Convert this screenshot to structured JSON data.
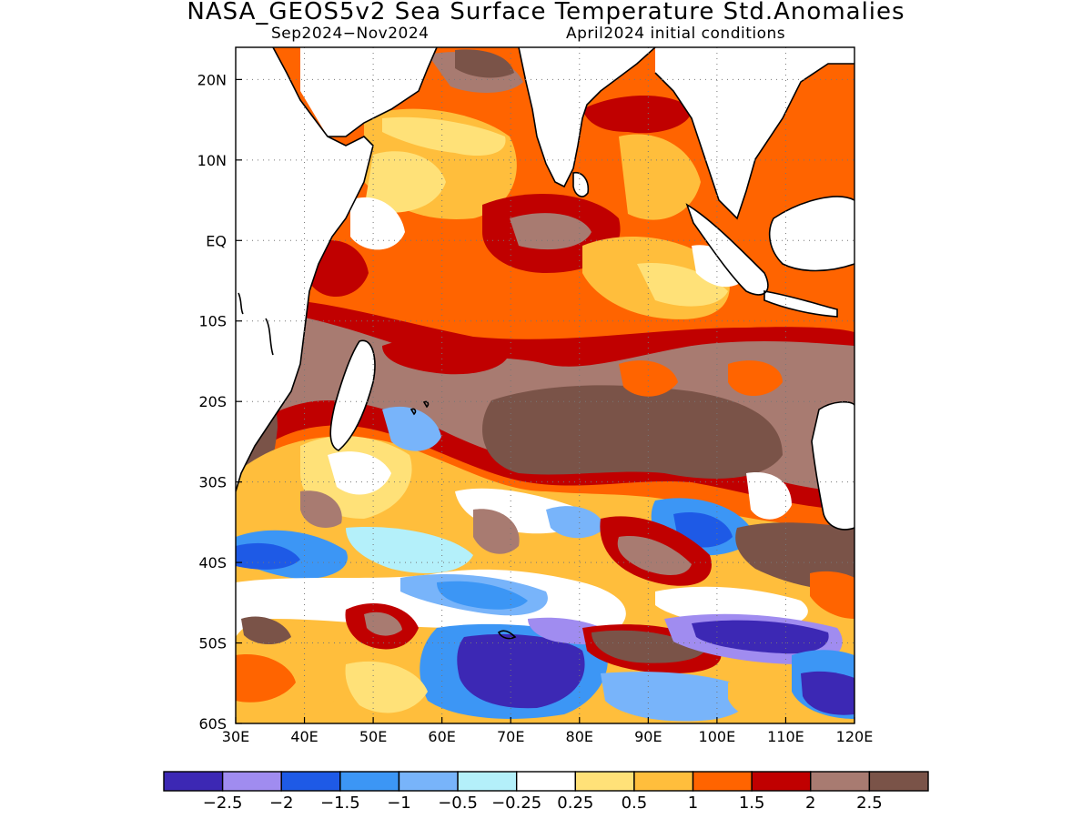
{
  "title": "NASA_GEOS5v2 Sea Surface Temperature Std.Anomalies",
  "subtitle_left": "Sep2024−Nov2024",
  "subtitle_right": "April2024 initial conditions",
  "map": {
    "lon_range": [
      30,
      120
    ],
    "lat_range": [
      -60,
      24
    ],
    "lon_ticks": [
      "30E",
      "40E",
      "50E",
      "60E",
      "70E",
      "80E",
      "90E",
      "100E",
      "110E",
      "120E"
    ],
    "lat_ticks": [
      "20N",
      "10N",
      "EQ",
      "10S",
      "20S",
      "30S",
      "40S",
      "50S",
      "60S"
    ],
    "grid": "dotted"
  },
  "colorbar": {
    "colors": [
      "#3c28b4",
      "#a08cf0",
      "#1e5ae6",
      "#3c96f5",
      "#78b4fa",
      "#b4f0fa",
      "#ffffff",
      "#ffe178",
      "#ffbe3c",
      "#ff6400",
      "#c00000",
      "#a87b71",
      "#7a5348"
    ],
    "labels": [
      "−2.5",
      "−2",
      "−1.5",
      "−1",
      "−0.5",
      "−0.25",
      "0.25",
      "0.5",
      "1",
      "1.5",
      "2",
      "2.5"
    ]
  }
}
